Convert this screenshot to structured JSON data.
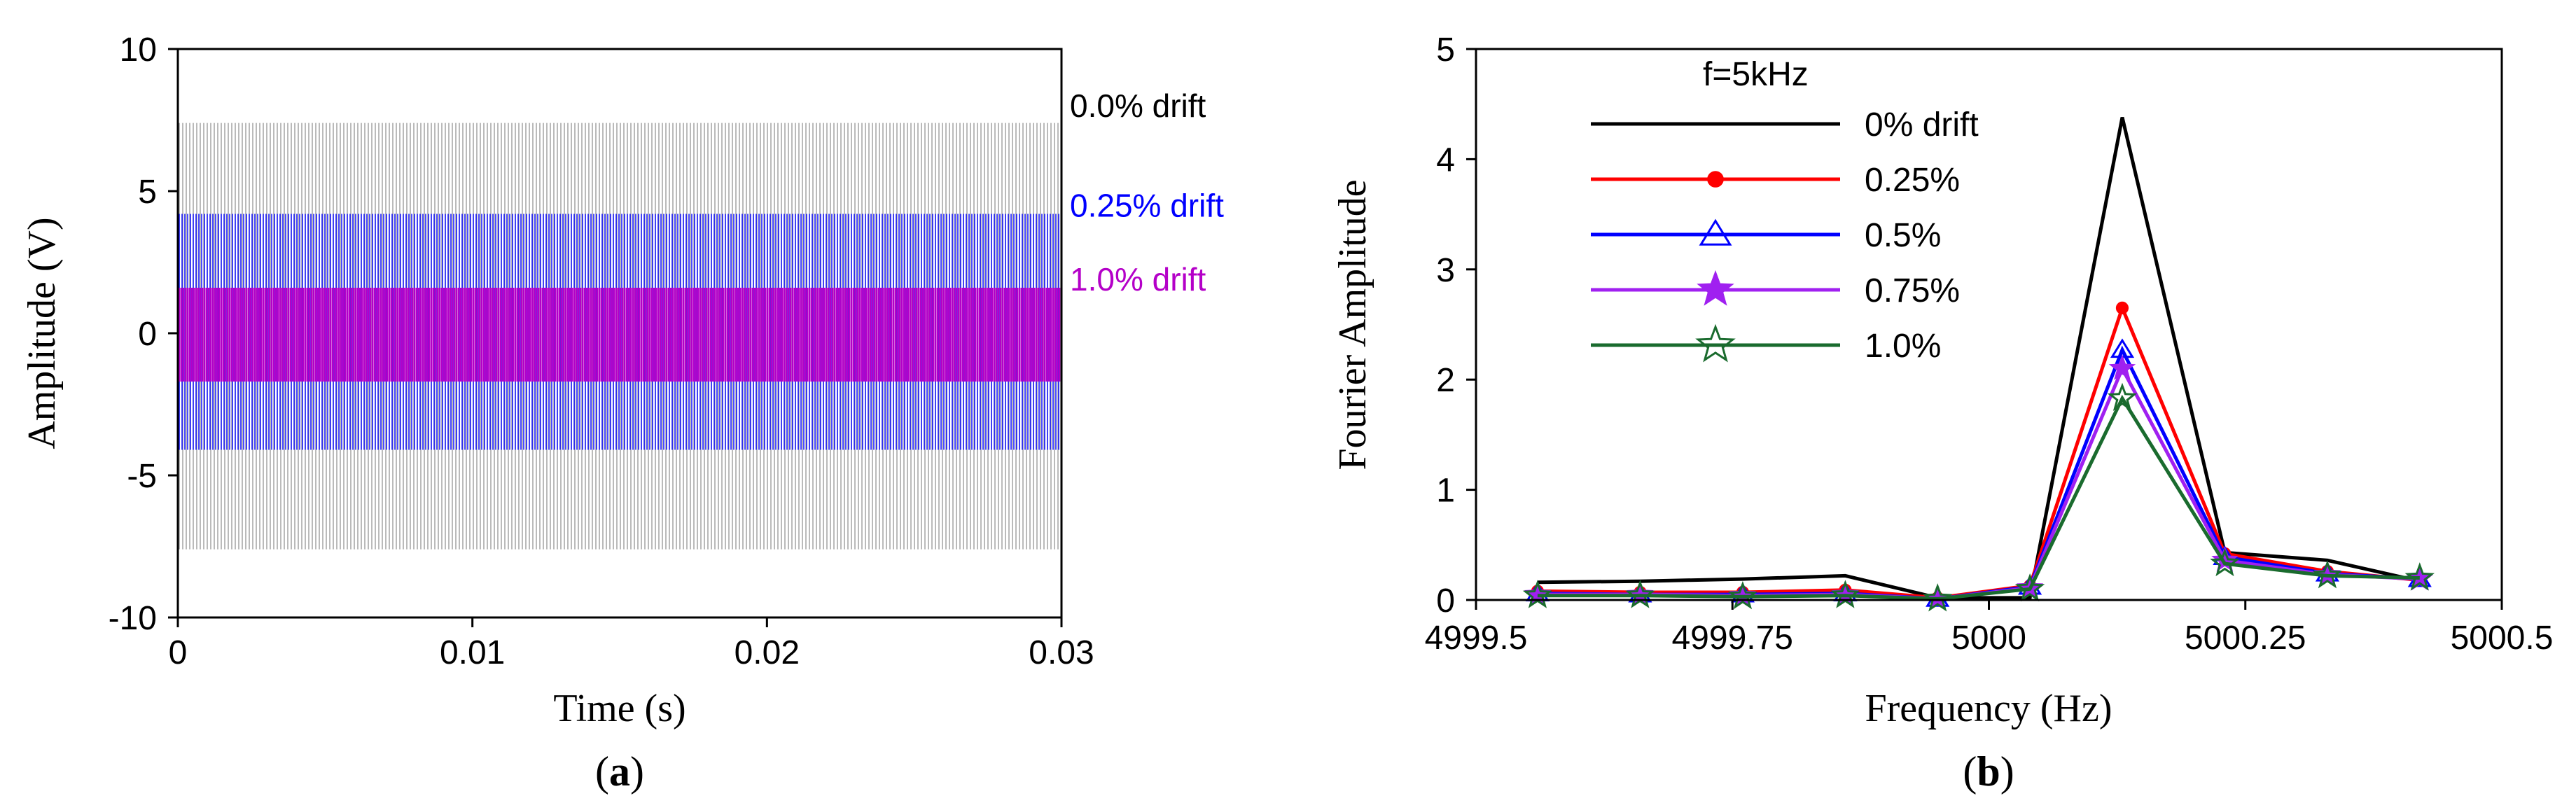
{
  "chart_data": [
    {
      "type": "line",
      "panel_label": "a",
      "xlabel": "Time (s)",
      "ylabel": "Amplitude (V)",
      "xlim": [
        0,
        0.03
      ],
      "ylim": [
        -10,
        10
      ],
      "xticks": [
        0,
        0.01,
        0.02,
        0.03
      ],
      "xtick_labels": [
        "0",
        "0.01",
        "0.02",
        "0.03"
      ],
      "yticks": [
        -10,
        -5,
        0,
        5,
        10
      ],
      "ytick_labels": [
        "-10",
        "-5",
        "0",
        "5",
        "10"
      ],
      "series": [
        {
          "name": "0.0% drift",
          "label": "0.0% drift",
          "color": "#8c8c8c",
          "label_color": "#000000",
          "amplitude_max": 7.4,
          "amplitude_min": -7.6
        },
        {
          "name": "0.25% drift",
          "label": "0.25% drift",
          "color": "#0000ff",
          "label_color": "#0000ff",
          "amplitude_max": 4.2,
          "amplitude_min": -4.1
        },
        {
          "name": "1.0% drift",
          "label": "1.0% drift",
          "color": "#b400c8",
          "label_color": "#b400c8",
          "amplitude_max": 1.6,
          "amplitude_min": -1.7
        }
      ]
    },
    {
      "type": "line",
      "panel_label": "b",
      "title": "f=5kHz",
      "xlabel": "Frequency (Hz)",
      "ylabel": "Fourier Amplitude",
      "xlim": [
        4999.5,
        5000.5
      ],
      "ylim": [
        0,
        5
      ],
      "xticks": [
        4999.5,
        4999.75,
        5000,
        5000.25,
        5000.5
      ],
      "xtick_labels": [
        "4999.5",
        "4999.75",
        "5000",
        "5000.25",
        "5000.5"
      ],
      "yticks": [
        0,
        1,
        2,
        3,
        4,
        5
      ],
      "ytick_labels": [
        "0",
        "1",
        "2",
        "3",
        "4",
        "5"
      ],
      "x": [
        4999.56,
        4999.66,
        4999.76,
        4999.86,
        4999.95,
        5000.04,
        5000.13,
        5000.23,
        5000.33,
        5000.42
      ],
      "series": [
        {
          "name": "0% drift",
          "color": "#000000",
          "marker": "none",
          "values": [
            0.16,
            0.17,
            0.19,
            0.22,
            0.02,
            0.02,
            4.38,
            0.43,
            0.36,
            0.17
          ]
        },
        {
          "name": "0.25%",
          "color": "#ff0000",
          "marker": "dot",
          "values": [
            0.08,
            0.07,
            0.07,
            0.09,
            0.02,
            0.13,
            2.65,
            0.42,
            0.26,
            0.18
          ]
        },
        {
          "name": "0.5%",
          "color": "#0000ff",
          "marker": "triangle",
          "values": [
            0.06,
            0.05,
            0.05,
            0.06,
            0.01,
            0.12,
            2.27,
            0.39,
            0.24,
            0.19
          ]
        },
        {
          "name": "0.75%",
          "color": "#a020f0",
          "marker": "star",
          "values": [
            0.05,
            0.05,
            0.04,
            0.05,
            0.01,
            0.11,
            2.1,
            0.36,
            0.23,
            0.19
          ]
        },
        {
          "name": "1.0%",
          "color": "#1a6b2e",
          "marker": "star-open",
          "values": [
            0.04,
            0.04,
            0.03,
            0.04,
            0.01,
            0.1,
            1.83,
            0.33,
            0.22,
            0.2
          ]
        }
      ]
    }
  ]
}
